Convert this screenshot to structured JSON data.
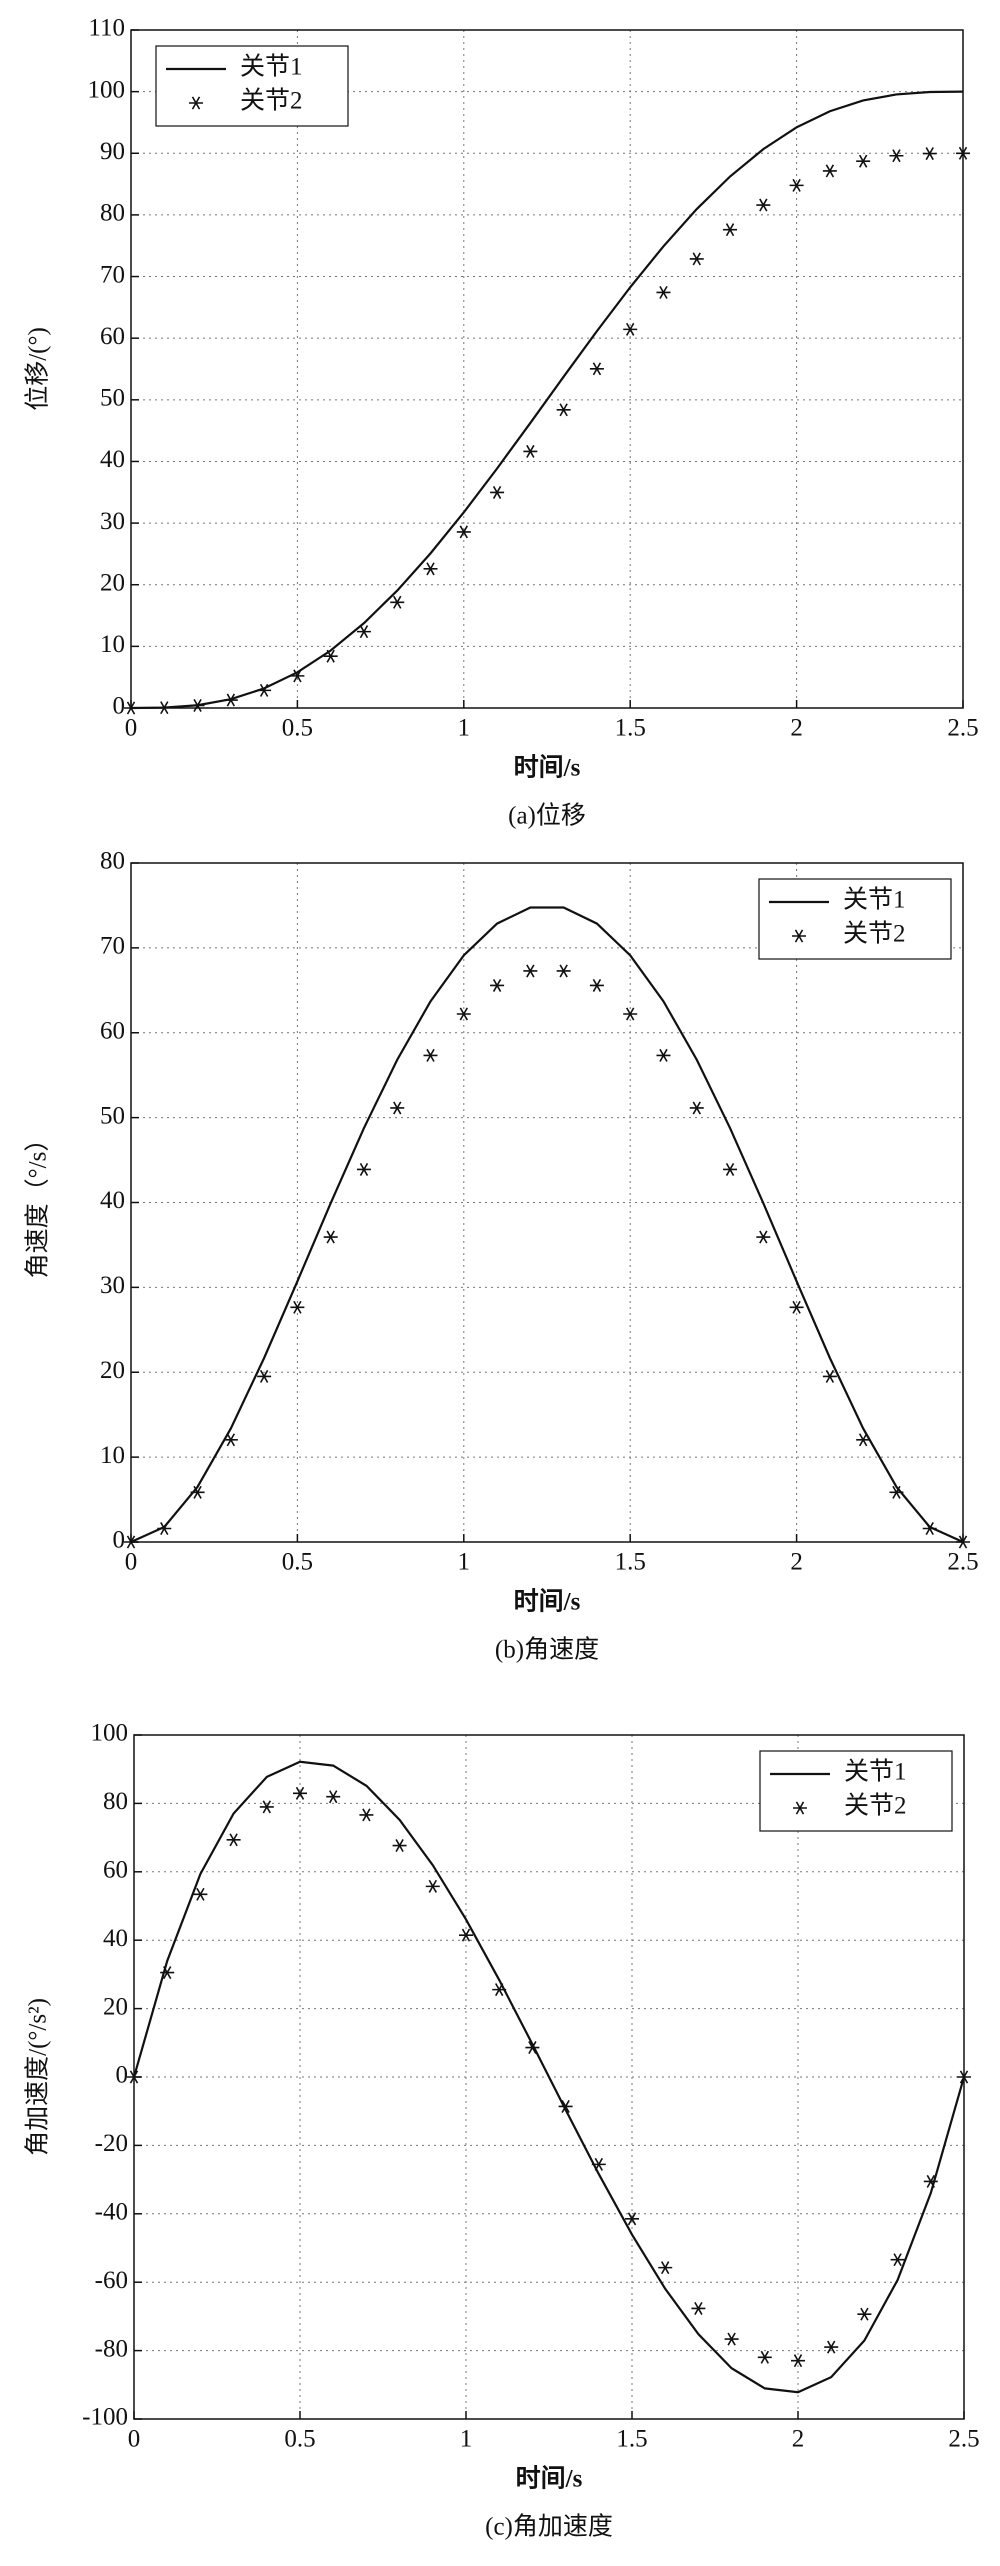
{
  "chart_data": [
    {
      "type": "line",
      "caption": "(a)位移",
      "xlabel": "时间/s",
      "ylabel": "位移/(°)",
      "x": [
        0,
        0.1,
        0.2,
        0.3,
        0.4,
        0.5,
        0.6,
        0.7,
        0.8,
        0.9,
        1,
        1.1,
        1.2,
        1.3,
        1.4,
        1.5,
        1.6,
        1.7,
        1.8,
        1.9,
        2,
        2.1,
        2.2,
        2.3,
        2.4,
        2.5
      ],
      "series": [
        {
          "name": "关节1",
          "color": "#111111",
          "values": [
            0,
            0.06,
            0.45,
            1.43,
            3.18,
            5.79,
            9.33,
            13.77,
            19.05,
            25.09,
            31.74,
            38.86,
            46.25,
            53.75,
            61.14,
            68.26,
            74.91,
            80.95,
            86.23,
            90.67,
            94.21,
            96.82,
            98.57,
            99.55,
            99.94,
            100
          ]
        },
        {
          "name": "关节2",
          "color": "#111111",
          "marker": "*",
          "values": [
            0,
            0.05,
            0.41,
            1.29,
            2.86,
            5.21,
            8.4,
            12.39,
            17.15,
            22.58,
            28.57,
            34.97,
            41.63,
            48.38,
            55.03,
            61.43,
            67.42,
            72.86,
            77.61,
            81.6,
            84.79,
            87.14,
            88.71,
            89.6,
            89.95,
            90
          ]
        }
      ],
      "xlim": [
        0,
        2.5
      ],
      "ylim": [
        0,
        110
      ],
      "xticks": [
        0,
        0.5,
        1,
        1.5,
        2,
        2.5
      ],
      "yticks": [
        0,
        10,
        20,
        30,
        40,
        50,
        60,
        70,
        80,
        90,
        100,
        110
      ],
      "grid": true,
      "legend": "upper left"
    },
    {
      "type": "line",
      "caption": "(b)角速度",
      "xlabel": "时间/s",
      "ylabel": "角速度（°/s）",
      "x": [
        0,
        0.1,
        0.2,
        0.3,
        0.4,
        0.5,
        0.6,
        0.7,
        0.8,
        0.9,
        1,
        1.1,
        1.2,
        1.3,
        1.4,
        1.5,
        1.6,
        1.7,
        1.8,
        1.9,
        2,
        2.1,
        2.2,
        2.3,
        2.4,
        2.5
      ],
      "series": [
        {
          "name": "关节1",
          "color": "#111111",
          "values": [
            0,
            1.77,
            6.5,
            13.38,
            21.68,
            30.72,
            39.92,
            48.77,
            56.82,
            63.7,
            69.12,
            72.86,
            74.76,
            74.76,
            72.86,
            69.12,
            63.7,
            56.82,
            48.77,
            39.92,
            30.72,
            21.68,
            13.38,
            6.5,
            1.77,
            0
          ]
        },
        {
          "name": "关节2",
          "color": "#111111",
          "marker": "*",
          "values": [
            0,
            1.59,
            5.85,
            12.04,
            19.51,
            27.65,
            35.93,
            43.89,
            51.14,
            57.33,
            62.21,
            65.57,
            67.28,
            67.28,
            65.57,
            62.21,
            57.33,
            51.14,
            43.89,
            35.93,
            27.65,
            19.51,
            12.04,
            5.85,
            1.59,
            0
          ]
        }
      ],
      "xlim": [
        0,
        2.5
      ],
      "ylim": [
        0,
        80
      ],
      "xticks": [
        0,
        0.5,
        1,
        1.5,
        2,
        2.5
      ],
      "yticks": [
        0,
        10,
        20,
        30,
        40,
        50,
        60,
        70,
        80
      ],
      "grid": true,
      "legend": "upper right"
    },
    {
      "type": "line",
      "caption": "(c)角加速度",
      "xlabel": "时间/s",
      "ylabel": "角加速度/(°/s²)",
      "x": [
        0,
        0.1,
        0.2,
        0.3,
        0.4,
        0.5,
        0.6,
        0.7,
        0.8,
        0.9,
        1,
        1.1,
        1.2,
        1.3,
        1.4,
        1.5,
        1.6,
        1.7,
        1.8,
        1.9,
        2,
        2.1,
        2.2,
        2.3,
        2.4,
        2.5
      ],
      "series": [
        {
          "name": "关节1",
          "color": "#111111",
          "values": [
            0,
            33.92,
            59.35,
            77.05,
            87.74,
            92.16,
            91.05,
            85.16,
            75.2,
            61.93,
            46.08,
            28.39,
            9.58,
            -9.58,
            -28.39,
            -46.08,
            -61.93,
            -75.2,
            -85.16,
            -91.05,
            -92.16,
            -87.74,
            -77.05,
            -59.35,
            -33.92,
            0
          ]
        },
        {
          "name": "关节2",
          "color": "#111111",
          "marker": "*",
          "values": [
            0,
            30.53,
            53.42,
            69.35,
            78.97,
            82.94,
            81.95,
            76.64,
            67.68,
            55.74,
            41.47,
            25.55,
            8.62,
            -8.62,
            -25.55,
            -41.47,
            -55.74,
            -67.68,
            -76.64,
            -81.95,
            -82.94,
            -78.97,
            -69.35,
            -53.42,
            -30.53,
            0
          ]
        }
      ],
      "xlim": [
        0,
        2.5
      ],
      "ylim": [
        -100,
        100
      ],
      "xticks": [
        0,
        0.5,
        1,
        1.5,
        2,
        2.5
      ],
      "yticks": [
        -100,
        -80,
        -60,
        -40,
        -20,
        0,
        20,
        40,
        60,
        80,
        100
      ],
      "grid": true,
      "legend": "upper right"
    }
  ]
}
